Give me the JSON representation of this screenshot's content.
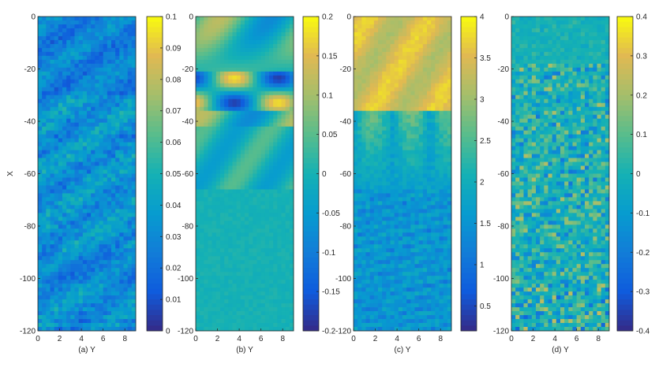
{
  "figure": {
    "colormap": "parula",
    "panels_caption_note": ""
  },
  "chart_data": [
    {
      "type": "heatmap",
      "panel": "a",
      "xlabel": "(a) Y",
      "ylabel": "X",
      "xlim": [
        0,
        9
      ],
      "ylim": [
        -120,
        0
      ],
      "x_ticks": [
        0,
        2,
        4,
        6,
        8
      ],
      "y_ticks": [
        0,
        -20,
        -40,
        -60,
        -80,
        -100,
        -120
      ],
      "x_tick_labels": [
        "0",
        "2",
        "4",
        "6",
        "8"
      ],
      "y_tick_labels": [
        "0",
        "-20",
        "-40",
        "-60",
        "-80",
        "-100",
        "-120"
      ],
      "colorbar": {
        "range": [
          0,
          0.1
        ],
        "ticks": [
          0,
          0.01,
          0.02,
          0.03,
          0.04,
          0.05,
          0.06,
          0.07,
          0.08,
          0.09,
          0.1
        ],
        "tick_labels": [
          "0",
          "0.01",
          "0.02",
          "0.03",
          "0.04",
          "0.05",
          "0.06",
          "0.07",
          "0.08",
          "0.09",
          "0.1"
        ]
      }
    },
    {
      "type": "heatmap",
      "panel": "b",
      "xlabel": "(b) Y",
      "ylabel": "",
      "xlim": [
        0,
        9
      ],
      "ylim": [
        -120,
        0
      ],
      "x_ticks": [
        0,
        2,
        4,
        6,
        8
      ],
      "y_ticks": [
        0,
        -20,
        -40,
        -60,
        -80,
        -100,
        -120
      ],
      "x_tick_labels": [
        "0",
        "2",
        "4",
        "6",
        "8"
      ],
      "y_tick_labels": [
        "0",
        "-20",
        "-40",
        "-60",
        "-80",
        "-100",
        "-120"
      ],
      "colorbar": {
        "range": [
          -0.2,
          0.2
        ],
        "ticks": [
          -0.2,
          -0.15,
          -0.1,
          -0.05,
          0,
          0.05,
          0.1,
          0.15,
          0.2
        ],
        "tick_labels": [
          "-0.2",
          "-0.15",
          "-0.1",
          "-0.05",
          "0",
          "0.05",
          "0.1",
          "0.15",
          "0.2"
        ]
      }
    },
    {
      "type": "heatmap",
      "panel": "c",
      "xlabel": "(c) Y",
      "ylabel": "",
      "xlim": [
        0,
        9
      ],
      "ylim": [
        -120,
        0
      ],
      "x_ticks": [
        0,
        2,
        4,
        6,
        8
      ],
      "y_ticks": [
        0,
        -20,
        -40,
        -60,
        -80,
        -100,
        -120
      ],
      "x_tick_labels": [
        "0",
        "2",
        "4",
        "6",
        "8"
      ],
      "y_tick_labels": [
        "0",
        "-20",
        "-40",
        "-60",
        "-80",
        "-100",
        "-120"
      ],
      "colorbar": {
        "range": [
          0.2,
          4
        ],
        "ticks": [
          0.5,
          1,
          1.5,
          2,
          2.5,
          3,
          3.5,
          4
        ],
        "tick_labels": [
          "0.5",
          "1",
          "1.5",
          "2",
          "2.5",
          "3",
          "3.5",
          "4"
        ]
      }
    },
    {
      "type": "heatmap",
      "panel": "d",
      "xlabel": "(d) Y",
      "ylabel": "",
      "xlim": [
        0,
        9
      ],
      "ylim": [
        -120,
        0
      ],
      "x_ticks": [
        0,
        2,
        4,
        6,
        8
      ],
      "y_ticks": [
        0,
        -20,
        -40,
        -60,
        -80,
        -100,
        -120
      ],
      "x_tick_labels": [
        "0",
        "2",
        "4",
        "6",
        "8"
      ],
      "y_tick_labels": [
        "0",
        "-20",
        "-40",
        "-60",
        "-80",
        "-100",
        "-120"
      ],
      "colorbar": {
        "range": [
          -0.4,
          0.4
        ],
        "ticks": [
          -0.4,
          -0.3,
          -0.2,
          -0.1,
          0,
          0.1,
          0.2,
          0.3,
          0.4
        ],
        "tick_labels": [
          "-0.4",
          "-0.3",
          "-0.2",
          "-0.1",
          "0",
          "0.1",
          "0.2",
          "0.3",
          "0.4"
        ]
      }
    }
  ]
}
